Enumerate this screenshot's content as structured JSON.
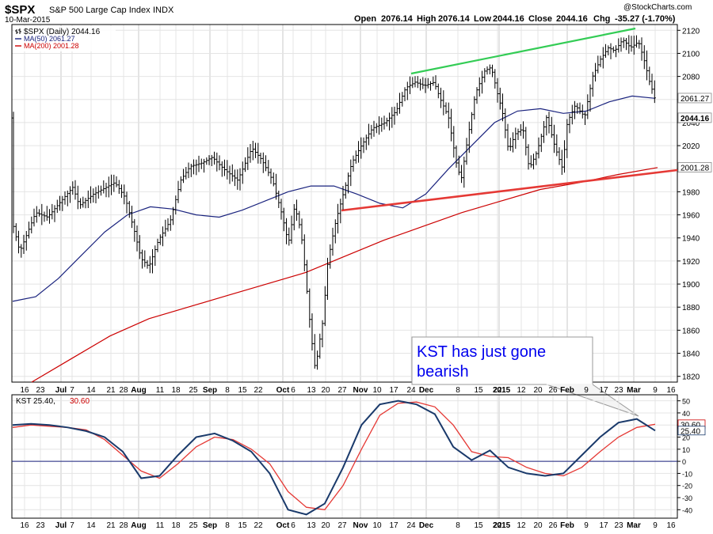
{
  "header": {
    "symbol": "$SPX",
    "name": "S&P 500 Large Cap Index",
    "exchange": "INDX",
    "date": "10-Mar-2015",
    "brand": "@StockCharts.com",
    "open_label": "Open",
    "open": "2076.14",
    "high_label": "High",
    "high": "2076.14",
    "low_label": "Low",
    "low": "2044.16",
    "close_label": "Close",
    "close": "2044.16",
    "chg_label": "Chg",
    "chg": "-35.27 (-1.70%)"
  },
  "legend": {
    "price": "$SPX (Daily) 2044.16",
    "ma50": "MA(50) 2061.27",
    "ma200": "MA(200) 2001.28",
    "kst": "KST 25.40,",
    "kst_signal": "30.60"
  },
  "annotation": {
    "line1": "KST has just gone",
    "line2": "bearish"
  },
  "colors": {
    "price_bars": "#000000",
    "ma50": "#1a237e",
    "ma200": "#cc0000",
    "upper_trendline": "#33cc55",
    "lower_trendline": "#e53935",
    "kst": "#1a3a6b",
    "kst_signal": "#e53935",
    "annotation_text": "#0000ee"
  },
  "chart_data": [
    {
      "type": "line",
      "subtype": "ohlc",
      "series": [
        {
          "name": "$SPX (Daily)",
          "ref": "ohlc"
        },
        {
          "name": "MA(50)",
          "values": [
            1885,
            1889,
            1905,
            1925,
            1945,
            1960,
            1967,
            1965,
            1960,
            1958,
            1964,
            1972,
            1980,
            1985,
            1985,
            1978,
            1970,
            1966,
            1978,
            2000,
            2020,
            2040,
            2050,
            2052,
            2048,
            2050,
            2058,
            2063,
            2061
          ]
        },
        {
          "name": "MA(200)",
          "values": [
            1815,
            1835,
            1855,
            1870,
            1880,
            1890,
            1900,
            1910,
            1924,
            1938,
            1950,
            1962,
            1972,
            1982,
            1988,
            1995,
            2001
          ]
        }
      ],
      "x_labels": [
        "16",
        "23",
        "Jul",
        "7",
        "14",
        "21",
        "28",
        "Aug",
        "11",
        "18",
        "25",
        "Sep",
        "8",
        "15",
        "22",
        "Oct",
        "6",
        "13",
        "20",
        "27",
        "Nov",
        "10",
        "17",
        "24",
        "Dec",
        "8",
        "15",
        "22",
        "2015",
        "12",
        "20",
        "26",
        "Feb",
        "9",
        "17",
        "23",
        "Mar",
        "9",
        "16"
      ],
      "ylim": [
        1815,
        2125
      ],
      "y_ticks": [
        1820,
        1840,
        1860,
        1880,
        1900,
        1920,
        1940,
        1960,
        1980,
        2000,
        2020,
        2040,
        2060,
        2080,
        2100,
        2120
      ],
      "price_tags": [
        "2061.27",
        "2044.16",
        "2001.28"
      ],
      "grid": true
    },
    {
      "type": "line",
      "series": [
        {
          "name": "KST",
          "values": [
            30,
            31,
            30,
            28,
            25,
            20,
            8,
            -14,
            -12,
            5,
            20,
            23,
            17,
            8,
            -10,
            -40,
            -44,
            -35,
            -5,
            30,
            47,
            50,
            47,
            39,
            12,
            1,
            9,
            -5,
            -10,
            -12,
            -10,
            5,
            20,
            32,
            35,
            25.4
          ]
        },
        {
          "name": "KST signal",
          "values": [
            28,
            30,
            29,
            28,
            26,
            18,
            5,
            -8,
            -14,
            -2,
            12,
            20,
            18,
            10,
            -2,
            -25,
            -38,
            -40,
            -20,
            10,
            38,
            48,
            49,
            45,
            30,
            8,
            4,
            3,
            -5,
            -10,
            -12,
            -5,
            8,
            20,
            28,
            30.6
          ]
        }
      ],
      "x_labels": [
        "16",
        "23",
        "Jul",
        "7",
        "14",
        "21",
        "28",
        "Aug",
        "11",
        "18",
        "25",
        "Sep",
        "8",
        "15",
        "22",
        "Oct",
        "6",
        "13",
        "20",
        "27",
        "Nov",
        "10",
        "17",
        "24",
        "Dec",
        "8",
        "15",
        "22",
        "2015",
        "12",
        "20",
        "26",
        "Feb",
        "9",
        "17",
        "23",
        "Mar",
        "9",
        "16"
      ],
      "ylim": [
        -47,
        55
      ],
      "y_ticks": [
        -40,
        -30,
        -20,
        -10,
        0,
        10,
        20,
        30,
        40,
        50
      ],
      "value_tags": [
        "30.60",
        "25.40"
      ],
      "zero_line": true,
      "grid": true
    }
  ]
}
